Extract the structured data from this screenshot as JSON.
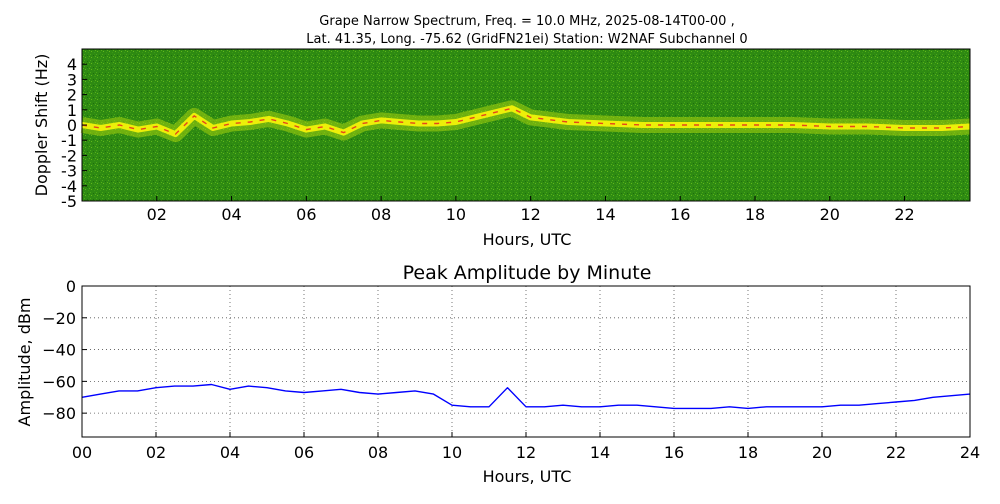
{
  "chart_data": [
    {
      "type": "heatmap",
      "title_lines": [
        "Grape Narrow Spectrum, Freq. = 10.0 MHz, 2025-08-14T00-00 ,",
        "Lat.  41.35, Long. -75.62 (GridFN21ei) Station: W2NAF Subchannel 0"
      ],
      "xlabel": "Hours, UTC",
      "ylabel": "Doppler Shift (Hz)",
      "xlim": [
        0,
        23.75
      ],
      "ylim": [
        -5,
        5
      ],
      "x_ticks": [
        2,
        4,
        6,
        8,
        10,
        12,
        14,
        16,
        18,
        20,
        22
      ],
      "x_tick_labels": [
        "02",
        "04",
        "06",
        "08",
        "10",
        "12",
        "14",
        "16",
        "18",
        "20",
        "22"
      ],
      "y_ticks": [
        4,
        3,
        2,
        1,
        0,
        -1,
        -2,
        -3,
        -4,
        -5
      ],
      "y_tick_labels": [
        "4",
        "3",
        "2",
        "1",
        "0",
        "-1",
        "-2",
        "-3",
        "-4",
        "-5"
      ],
      "colors": {
        "background": "#2e8a12",
        "mid": "#a6d10c",
        "high": "#f2f20a",
        "peak": "#e6281e"
      },
      "trace": {
        "x": [
          0,
          0.5,
          1,
          1.5,
          2,
          2.5,
          3,
          3.5,
          4,
          4.5,
          5,
          5.5,
          6,
          6.5,
          7,
          7.5,
          8,
          8.5,
          9,
          9.5,
          10,
          10.5,
          11,
          11.5,
          12,
          13,
          14,
          15,
          16,
          17,
          18,
          19,
          20,
          21,
          22,
          23,
          23.75
        ],
        "y": [
          0,
          -0.2,
          0,
          -0.3,
          -0.1,
          -0.6,
          0.6,
          -0.2,
          0.1,
          0.2,
          0.4,
          0.1,
          -0.3,
          -0.1,
          -0.5,
          0.1,
          0.3,
          0.2,
          0.1,
          0.1,
          0.2,
          0.5,
          0.8,
          1.1,
          0.5,
          0.2,
          0.1,
          0,
          0,
          0,
          0,
          0,
          -0.1,
          -0.1,
          -0.2,
          -0.2,
          -0.1
        ]
      }
    },
    {
      "type": "line",
      "title": "Peak Amplitude by Minute",
      "xlabel": "Hours, UTC",
      "ylabel": "Amplitude, dBm",
      "xlim": [
        0,
        24
      ],
      "ylim": [
        -95,
        0
      ],
      "grid": true,
      "x_ticks": [
        0,
        2,
        4,
        6,
        8,
        10,
        12,
        14,
        16,
        18,
        20,
        22,
        24
      ],
      "x_tick_labels": [
        "00",
        "02",
        "04",
        "06",
        "08",
        "10",
        "12",
        "14",
        "16",
        "18",
        "20",
        "22",
        "24"
      ],
      "y_ticks": [
        0,
        -20,
        -40,
        -60,
        -80
      ],
      "y_tick_labels": [
        "0",
        "−20",
        "−40",
        "−60",
        "−80"
      ],
      "color": "#0000ff",
      "series": [
        {
          "x": [
            0,
            0.5,
            1,
            1.5,
            2,
            2.5,
            3,
            3.5,
            4,
            4.5,
            5,
            5.5,
            6,
            6.5,
            7,
            7.5,
            8,
            8.5,
            9,
            9.5,
            10,
            10.5,
            11,
            11.5,
            12,
            12.5,
            13,
            13.5,
            14,
            14.5,
            15,
            15.5,
            16,
            16.5,
            17,
            17.5,
            18,
            18.5,
            19,
            19.5,
            20,
            20.5,
            21,
            21.5,
            22,
            22.5,
            23,
            23.5,
            24
          ],
          "y": [
            -70,
            -68,
            -66,
            -66,
            -64,
            -63,
            -63,
            -62,
            -65,
            -63,
            -64,
            -66,
            -67,
            -66,
            -65,
            -67,
            -68,
            -67,
            -66,
            -68,
            -75,
            -76,
            -76,
            -64,
            -76,
            -76,
            -75,
            -76,
            -76,
            -75,
            -75,
            -76,
            -77,
            -77,
            -77,
            -76,
            -77,
            -76,
            -76,
            -76,
            -76,
            -75,
            -75,
            -74,
            -73,
            -72,
            -70,
            -69,
            -68
          ]
        }
      ]
    }
  ]
}
